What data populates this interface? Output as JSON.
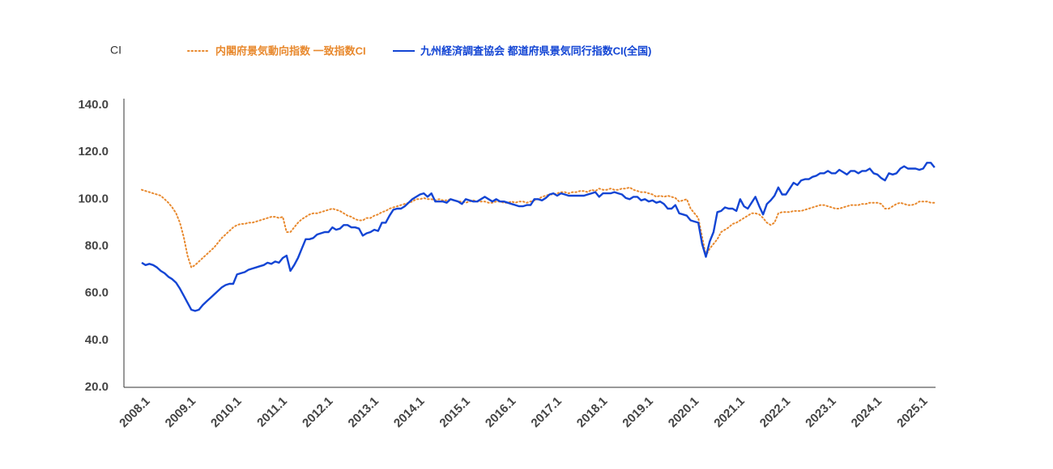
{
  "chart_data": {
    "type": "line",
    "y_label": "CI",
    "categories": [
      "2008.1",
      null,
      null,
      null,
      null,
      null,
      null,
      null,
      null,
      null,
      null,
      null,
      "2009.1",
      null,
      null,
      null,
      null,
      null,
      null,
      null,
      null,
      null,
      null,
      null,
      "2010.1",
      null,
      null,
      null,
      null,
      null,
      null,
      null,
      null,
      null,
      null,
      null,
      "2011.1",
      null,
      null,
      null,
      null,
      null,
      null,
      null,
      null,
      null,
      null,
      null,
      "2012.1",
      null,
      null,
      null,
      null,
      null,
      null,
      null,
      null,
      null,
      null,
      null,
      "2013.1",
      null,
      null,
      null,
      null,
      null,
      null,
      null,
      null,
      null,
      null,
      null,
      "2014.1",
      null,
      null,
      null,
      null,
      null,
      null,
      null,
      null,
      null,
      null,
      null,
      "2015.1",
      null,
      null,
      null,
      null,
      null,
      null,
      null,
      null,
      null,
      null,
      null,
      "2016.1",
      null,
      null,
      null,
      null,
      null,
      null,
      null,
      null,
      null,
      null,
      null,
      "2017.1",
      null,
      null,
      null,
      null,
      null,
      null,
      null,
      null,
      null,
      null,
      null,
      "2018.1",
      null,
      null,
      null,
      null,
      null,
      null,
      null,
      null,
      null,
      null,
      null,
      "2019.1",
      null,
      null,
      null,
      null,
      null,
      null,
      null,
      null,
      null,
      null,
      null,
      "2020.1",
      null,
      null,
      null,
      null,
      null,
      null,
      null,
      null,
      null,
      null,
      null,
      "2021.1",
      null,
      null,
      null,
      null,
      null,
      null,
      null,
      null,
      null,
      null,
      null,
      "2022.1",
      null,
      null,
      null,
      null,
      null,
      null,
      null,
      null,
      null,
      null,
      null,
      "2023.1",
      null,
      null,
      null,
      null,
      null,
      null,
      null,
      null,
      null,
      null,
      null,
      "2024.1",
      null,
      null,
      null,
      null,
      null,
      null,
      null,
      null,
      null,
      null,
      null,
      "2025.1",
      null,
      null,
      null,
      null
    ],
    "series": [
      {
        "name": "内閣府景気動向指数 一致指数CI",
        "color": "#e8892e",
        "dash": "dotted",
        "values": [
          104,
          103.5,
          103,
          102.5,
          102,
          101.5,
          100,
          98.5,
          96.5,
          94,
          90,
          84,
          76,
          71,
          72,
          73.5,
          75,
          76.5,
          78,
          79.5,
          81.5,
          83.5,
          85,
          86.5,
          88,
          89,
          89.5,
          89.5,
          90,
          90,
          90.5,
          91,
          91.5,
          92,
          92.5,
          92.5,
          92,
          92.5,
          86,
          86,
          88,
          90,
          91.5,
          92.5,
          93.5,
          94,
          94,
          94.5,
          95,
          95.5,
          96,
          95.5,
          95,
          94,
          93,
          92.5,
          91.5,
          91,
          91,
          92,
          92,
          93,
          93.5,
          94.5,
          95,
          96,
          96.5,
          97,
          97.5,
          98,
          98.5,
          99,
          100,
          100,
          100.5,
          100,
          100,
          99.5,
          100,
          99.5,
          99.5,
          100,
          99.5,
          99,
          99,
          98.5,
          99,
          99.5,
          99,
          99,
          99,
          98.5,
          98.5,
          99,
          99,
          98.5,
          98.5,
          99,
          98.5,
          99,
          99,
          98.5,
          99,
          99.5,
          100,
          101,
          101.5,
          102,
          102,
          102.5,
          103,
          103,
          102.5,
          103,
          103,
          103.5,
          103.5,
          103,
          104,
          103.5,
          104.5,
          104,
          104,
          104.5,
          104,
          104,
          104.5,
          104.5,
          105,
          104,
          103.5,
          103,
          103,
          102.5,
          102,
          101,
          101.5,
          101,
          101.5,
          101,
          100.5,
          99,
          99.5,
          100,
          96,
          94,
          92,
          84,
          76,
          79,
          81,
          83,
          86,
          87,
          88,
          89.5,
          90,
          91,
          92,
          93,
          94,
          94,
          93.5,
          92,
          90,
          89,
          90,
          94,
          94.5,
          94.5,
          94.5,
          95,
          95,
          95,
          95.5,
          96,
          96.5,
          97,
          97.5,
          97.5,
          97,
          96.5,
          96,
          96,
          96.5,
          97,
          97.5,
          97.5,
          97.5,
          98,
          98,
          98.5,
          98.5,
          98.5,
          98,
          96,
          96,
          97,
          98,
          98.5,
          98,
          97.5,
          97.5,
          98,
          99,
          99,
          99,
          98.5,
          98.5
        ]
      },
      {
        "name": "九州経済調査協会 都道府県景気同行指数CI(全国)",
        "color": "#1345d4",
        "dash": "solid",
        "values": [
          73,
          72,
          72.5,
          72,
          71,
          69.5,
          68.5,
          67,
          66,
          64.5,
          62,
          59,
          56,
          53,
          52.5,
          53,
          55,
          56.5,
          58,
          59.5,
          61,
          62.5,
          63.5,
          64,
          64,
          68,
          68.5,
          69,
          70,
          70.5,
          71,
          71.5,
          72,
          73,
          72.5,
          73.5,
          73,
          75,
          76,
          69.5,
          72,
          75,
          79,
          83,
          83,
          83.5,
          85,
          85.5,
          86,
          86,
          88,
          87,
          87.5,
          89,
          89,
          88,
          88,
          87.5,
          84.5,
          85.5,
          86,
          87,
          86.5,
          90,
          90,
          93,
          95.5,
          96,
          96,
          97,
          98.5,
          100,
          101,
          102,
          102.5,
          101,
          102.5,
          99,
          99,
          99,
          98.5,
          100,
          99.5,
          99,
          98,
          100,
          99.5,
          99,
          99,
          100,
          101,
          100,
          99,
          100,
          99,
          99,
          98.5,
          98,
          97.5,
          97,
          97,
          97.5,
          97.5,
          100,
          100,
          99.5,
          100.5,
          102,
          102.5,
          101.5,
          102.5,
          102,
          101.5,
          101.5,
          101.5,
          101.5,
          101.5,
          102,
          102.5,
          103,
          101,
          102.5,
          102.5,
          102.5,
          103,
          102.5,
          102,
          100.5,
          100,
          101,
          101,
          99.5,
          100,
          99,
          99.5,
          98.5,
          99,
          98,
          96,
          96,
          97.5,
          94,
          93.5,
          93,
          91,
          90.5,
          90,
          81,
          75.5,
          82,
          86,
          94.5,
          95,
          96.5,
          96,
          96,
          95,
          100,
          97,
          96,
          98.5,
          101,
          97,
          93.5,
          98,
          99.5,
          101.5,
          105,
          102,
          102,
          104.5,
          107,
          106,
          108,
          108.5,
          108.5,
          109.5,
          110,
          111,
          111,
          112,
          111,
          111,
          112.5,
          111.5,
          110.5,
          112,
          112,
          111,
          112,
          112,
          113,
          111,
          110.5,
          109,
          108,
          111,
          110.5,
          111,
          113,
          114,
          113,
          113,
          113,
          112.5,
          113,
          115.5,
          115.5,
          113.5
        ]
      }
    ],
    "ylim": [
      20,
      140
    ],
    "yticks": [
      {
        "value": 20,
        "label": "20.0"
      },
      {
        "value": 40,
        "label": "40.0"
      },
      {
        "value": 60,
        "label": "60.0"
      },
      {
        "value": 80,
        "label": "80.0"
      },
      {
        "value": 100,
        "label": "100.0"
      },
      {
        "value": 120,
        "label": "120.0"
      },
      {
        "value": 140,
        "label": "140.0"
      }
    ],
    "grid": false
  }
}
